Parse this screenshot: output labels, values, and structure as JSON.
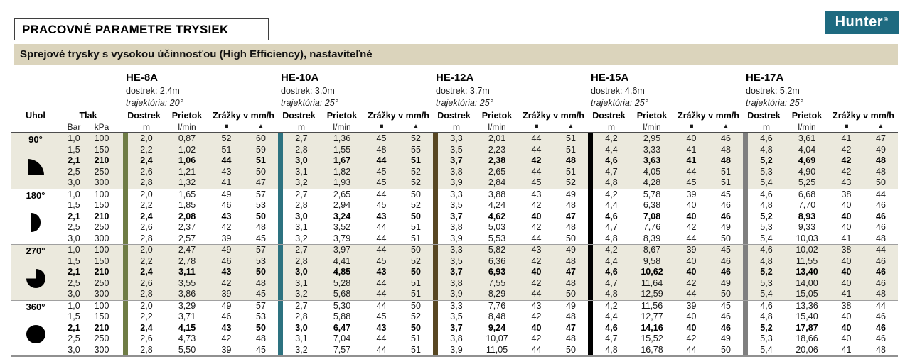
{
  "page": {
    "title": "PRACOVNÉ PARAMETRE TRYSIEK",
    "subtitle": "Sprejové trysky s vysokou účinnosťou (High Efficiency), nastaviteľné",
    "logo": {
      "text": "Hunter",
      "reg": "®",
      "bg_color": "#1e6a80"
    }
  },
  "table": {
    "headers": {
      "uhol": "Uhol",
      "tlak": "Tlak",
      "bar": "Bar",
      "kpa": "kPa",
      "dostrek": "Dostrek",
      "dostrek_unit": "m",
      "prietok": "Prietok",
      "prietok_unit": "l/min",
      "zrazky": "Zrážky v mm/h",
      "square_symbol": "■",
      "triangle_symbol": "▲"
    },
    "nozzles": [
      {
        "name": "HE-8A",
        "dostrek": "dostrek: 2,4m",
        "trajektoria": "trajektória: 20°",
        "bar_color": "#6f7c45"
      },
      {
        "name": "HE-10A",
        "dostrek": "dostrek: 3,0m",
        "trajektoria": "trajektória: 25°",
        "bar_color": "#2d7280"
      },
      {
        "name": "HE-12A",
        "dostrek": "dostrek: 3,7m",
        "trajektoria": "trajektória: 25°",
        "bar_color": "#584722"
      },
      {
        "name": "HE-15A",
        "dostrek": "dostrek: 4,6m",
        "trajektoria": "trajektória: 25°",
        "bar_color": "#000000"
      },
      {
        "name": "HE-17A",
        "dostrek": "dostrek: 5,2m",
        "trajektoria": "trajektória: 25°",
        "bar_color": "#7f7f7f"
      }
    ],
    "groups": [
      {
        "angle": "90°",
        "icon": "quarter-circle",
        "rows": [
          {
            "bar": "1,0",
            "kpa": "100",
            "bold": false,
            "values": [
              [
                "2,0",
                "0,87",
                "52",
                "60"
              ],
              [
                "2,7",
                "1,36",
                "45",
                "52"
              ],
              [
                "3,3",
                "2,01",
                "44",
                "51"
              ],
              [
                "4,2",
                "2,95",
                "40",
                "46"
              ],
              [
                "4,6",
                "3,61",
                "41",
                "47"
              ]
            ]
          },
          {
            "bar": "1,5",
            "kpa": "150",
            "bold": false,
            "values": [
              [
                "2,2",
                "1,02",
                "51",
                "59"
              ],
              [
                "2,8",
                "1,55",
                "48",
                "55"
              ],
              [
                "3,5",
                "2,23",
                "44",
                "51"
              ],
              [
                "4,4",
                "3,33",
                "41",
                "48"
              ],
              [
                "4,8",
                "4,04",
                "42",
                "49"
              ]
            ]
          },
          {
            "bar": "2,1",
            "kpa": "210",
            "bold": true,
            "values": [
              [
                "2,4",
                "1,06",
                "44",
                "51"
              ],
              [
                "3,0",
                "1,67",
                "44",
                "51"
              ],
              [
                "3,7",
                "2,38",
                "42",
                "48"
              ],
              [
                "4,6",
                "3,63",
                "41",
                "48"
              ],
              [
                "5,2",
                "4,69",
                "42",
                "48"
              ]
            ]
          },
          {
            "bar": "2,5",
            "kpa": "250",
            "bold": false,
            "values": [
              [
                "2,6",
                "1,21",
                "43",
                "50"
              ],
              [
                "3,1",
                "1,82",
                "45",
                "52"
              ],
              [
                "3,8",
                "2,65",
                "44",
                "51"
              ],
              [
                "4,7",
                "4,05",
                "44",
                "51"
              ],
              [
                "5,3",
                "4,90",
                "42",
                "48"
              ]
            ]
          },
          {
            "bar": "3,0",
            "kpa": "300",
            "bold": false,
            "values": [
              [
                "2,8",
                "1,32",
                "41",
                "47"
              ],
              [
                "3,2",
                "1,93",
                "45",
                "52"
              ],
              [
                "3,9",
                "2,84",
                "45",
                "52"
              ],
              [
                "4,8",
                "4,28",
                "45",
                "51"
              ],
              [
                "5,4",
                "5,25",
                "43",
                "50"
              ]
            ]
          }
        ]
      },
      {
        "angle": "180°",
        "icon": "half-circle",
        "rows": [
          {
            "bar": "1,0",
            "kpa": "100",
            "bold": false,
            "values": [
              [
                "2,0",
                "1,65",
                "49",
                "57"
              ],
              [
                "2,7",
                "2,65",
                "44",
                "50"
              ],
              [
                "3,3",
                "3,88",
                "43",
                "49"
              ],
              [
                "4,2",
                "5,78",
                "39",
                "45"
              ],
              [
                "4,6",
                "6,68",
                "38",
                "44"
              ]
            ]
          },
          {
            "bar": "1,5",
            "kpa": "150",
            "bold": false,
            "values": [
              [
                "2,2",
                "1,85",
                "46",
                "53"
              ],
              [
                "2,8",
                "2,94",
                "45",
                "52"
              ],
              [
                "3,5",
                "4,24",
                "42",
                "48"
              ],
              [
                "4,4",
                "6,38",
                "40",
                "46"
              ],
              [
                "4,8",
                "7,70",
                "40",
                "46"
              ]
            ]
          },
          {
            "bar": "2,1",
            "kpa": "210",
            "bold": true,
            "values": [
              [
                "2,4",
                "2,08",
                "43",
                "50"
              ],
              [
                "3,0",
                "3,24",
                "43",
                "50"
              ],
              [
                "3,7",
                "4,62",
                "40",
                "47"
              ],
              [
                "4,6",
                "7,08",
                "40",
                "46"
              ],
              [
                "5,2",
                "8,93",
                "40",
                "46"
              ]
            ]
          },
          {
            "bar": "2,5",
            "kpa": "250",
            "bold": false,
            "values": [
              [
                "2,6",
                "2,37",
                "42",
                "48"
              ],
              [
                "3,1",
                "3,52",
                "44",
                "51"
              ],
              [
                "3,8",
                "5,03",
                "42",
                "48"
              ],
              [
                "4,7",
                "7,76",
                "42",
                "49"
              ],
              [
                "5,3",
                "9,33",
                "40",
                "46"
              ]
            ]
          },
          {
            "bar": "3,0",
            "kpa": "300",
            "bold": false,
            "values": [
              [
                "2,8",
                "2,57",
                "39",
                "45"
              ],
              [
                "3,2",
                "3,79",
                "44",
                "51"
              ],
              [
                "3,9",
                "5,53",
                "44",
                "50"
              ],
              [
                "4,8",
                "8,39",
                "44",
                "50"
              ],
              [
                "5,4",
                "10,03",
                "41",
                "48"
              ]
            ]
          }
        ]
      },
      {
        "angle": "270°",
        "icon": "three-quarter-circle",
        "rows": [
          {
            "bar": "1,0",
            "kpa": "100",
            "bold": false,
            "values": [
              [
                "2,0",
                "2,47",
                "49",
                "57"
              ],
              [
                "2,7",
                "3,97",
                "44",
                "50"
              ],
              [
                "3,3",
                "5,82",
                "43",
                "49"
              ],
              [
                "4,2",
                "8,67",
                "39",
                "45"
              ],
              [
                "4,6",
                "10,02",
                "38",
                "44"
              ]
            ]
          },
          {
            "bar": "1,5",
            "kpa": "150",
            "bold": false,
            "values": [
              [
                "2,2",
                "2,78",
                "46",
                "53"
              ],
              [
                "2,8",
                "4,41",
                "45",
                "52"
              ],
              [
                "3,5",
                "6,36",
                "42",
                "48"
              ],
              [
                "4,4",
                "9,58",
                "40",
                "46"
              ],
              [
                "4,8",
                "11,55",
                "40",
                "46"
              ]
            ]
          },
          {
            "bar": "2,1",
            "kpa": "210",
            "bold": true,
            "values": [
              [
                "2,4",
                "3,11",
                "43",
                "50"
              ],
              [
                "3,0",
                "4,85",
                "43",
                "50"
              ],
              [
                "3,7",
                "6,93",
                "40",
                "47"
              ],
              [
                "4,6",
                "10,62",
                "40",
                "46"
              ],
              [
                "5,2",
                "13,40",
                "40",
                "46"
              ]
            ]
          },
          {
            "bar": "2,5",
            "kpa": "250",
            "bold": false,
            "values": [
              [
                "2,6",
                "3,55",
                "42",
                "48"
              ],
              [
                "3,1",
                "5,28",
                "44",
                "51"
              ],
              [
                "3,8",
                "7,55",
                "42",
                "48"
              ],
              [
                "4,7",
                "11,64",
                "42",
                "49"
              ],
              [
                "5,3",
                "14,00",
                "40",
                "46"
              ]
            ]
          },
          {
            "bar": "3,0",
            "kpa": "300",
            "bold": false,
            "values": [
              [
                "2,8",
                "3,86",
                "39",
                "45"
              ],
              [
                "3,2",
                "5,68",
                "44",
                "51"
              ],
              [
                "3,9",
                "8,29",
                "44",
                "50"
              ],
              [
                "4,8",
                "12,59",
                "44",
                "50"
              ],
              [
                "5,4",
                "15,05",
                "41",
                "48"
              ]
            ]
          }
        ]
      },
      {
        "angle": "360°",
        "icon": "full-circle",
        "rows": [
          {
            "bar": "1,0",
            "kpa": "100",
            "bold": false,
            "values": [
              [
                "2,0",
                "3,29",
                "49",
                "57"
              ],
              [
                "2,7",
                "5,30",
                "44",
                "50"
              ],
              [
                "3,3",
                "7,76",
                "43",
                "49"
              ],
              [
                "4,2",
                "11,56",
                "39",
                "45"
              ],
              [
                "4,6",
                "13,36",
                "38",
                "44"
              ]
            ]
          },
          {
            "bar": "1,5",
            "kpa": "150",
            "bold": false,
            "values": [
              [
                "2,2",
                "3,71",
                "46",
                "53"
              ],
              [
                "2,8",
                "5,88",
                "45",
                "52"
              ],
              [
                "3,5",
                "8,48",
                "42",
                "48"
              ],
              [
                "4,4",
                "12,77",
                "40",
                "46"
              ],
              [
                "4,8",
                "15,40",
                "40",
                "46"
              ]
            ]
          },
          {
            "bar": "2,1",
            "kpa": "210",
            "bold": true,
            "values": [
              [
                "2,4",
                "4,15",
                "43",
                "50"
              ],
              [
                "3,0",
                "6,47",
                "43",
                "50"
              ],
              [
                "3,7",
                "9,24",
                "40",
                "47"
              ],
              [
                "4,6",
                "14,16",
                "40",
                "46"
              ],
              [
                "5,2",
                "17,87",
                "40",
                "46"
              ]
            ]
          },
          {
            "bar": "2,5",
            "kpa": "250",
            "bold": false,
            "values": [
              [
                "2,6",
                "4,73",
                "42",
                "48"
              ],
              [
                "3,1",
                "7,04",
                "44",
                "51"
              ],
              [
                "3,8",
                "10,07",
                "42",
                "48"
              ],
              [
                "4,7",
                "15,52",
                "42",
                "49"
              ],
              [
                "5,3",
                "18,66",
                "40",
                "46"
              ]
            ]
          },
          {
            "bar": "3,0",
            "kpa": "300",
            "bold": false,
            "values": [
              [
                "2,8",
                "5,50",
                "39",
                "45"
              ],
              [
                "3,2",
                "7,57",
                "44",
                "51"
              ],
              [
                "3,9",
                "11,05",
                "44",
                "50"
              ],
              [
                "4,8",
                "16,78",
                "44",
                "50"
              ],
              [
                "5,4",
                "20,06",
                "41",
                "48"
              ]
            ]
          }
        ]
      }
    ]
  }
}
